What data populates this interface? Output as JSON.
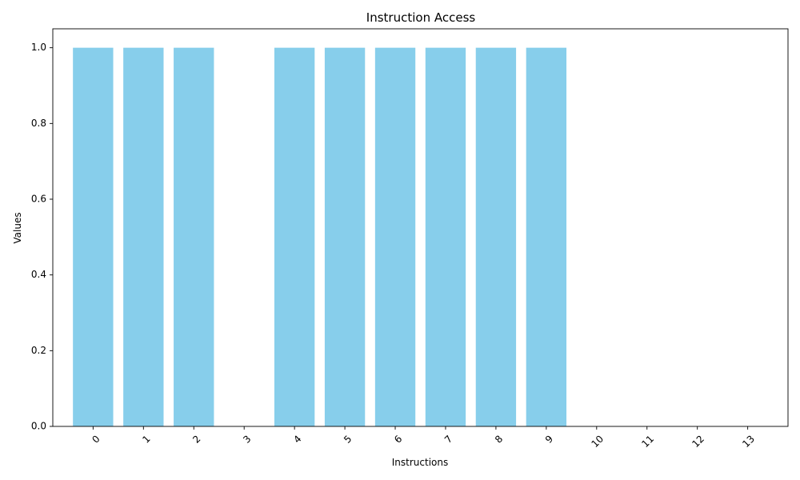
{
  "chart_data": {
    "type": "bar",
    "title": "Instruction Access",
    "xlabel": "Instructions",
    "ylabel": "Values",
    "categories": [
      "0",
      "1",
      "2",
      "3",
      "4",
      "5",
      "6",
      "7",
      "8",
      "9",
      "10",
      "11",
      "12",
      "13"
    ],
    "values": [
      1,
      1,
      1,
      0,
      1,
      1,
      1,
      1,
      1,
      1,
      0,
      0,
      0,
      0
    ],
    "ylim": [
      0,
      1.05
    ],
    "yticks": [
      "0.0",
      "0.2",
      "0.4",
      "0.6",
      "0.8",
      "1.0"
    ],
    "x_tick_rotation": "45 degrees",
    "grid": false,
    "legend": "none",
    "bar_color": "#87ceeb"
  }
}
